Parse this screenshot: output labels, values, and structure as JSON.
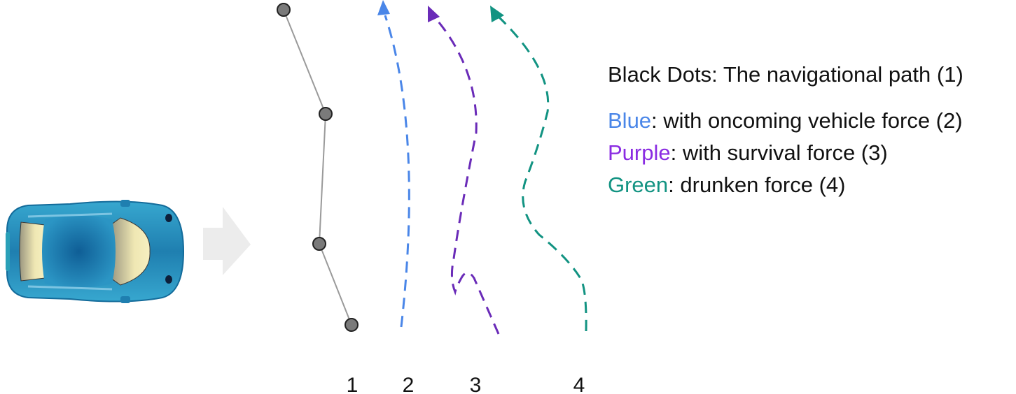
{
  "legend": {
    "line1": "Black Dots: The navigational path (1)",
    "blue_key": "Blue",
    "blue_rest": ": with oncoming vehicle force (2)",
    "purple_key": "Purple",
    "purple_rest": ": with survival force (3)",
    "green_key": "Green",
    "green_rest": ": drunken force (4)"
  },
  "labels": [
    "1",
    "2",
    "3",
    "4"
  ],
  "colors": {
    "path_dots": "#7a7a7a",
    "blue": "#4a86e8",
    "purple": "#6a2bb8",
    "green": "#129382",
    "purple_text": "#8a2be2",
    "green_text": "#129382",
    "arrow": "#ececec"
  },
  "icons": {
    "car": "car-top-view-icon",
    "direction": "right-arrow-icon"
  }
}
